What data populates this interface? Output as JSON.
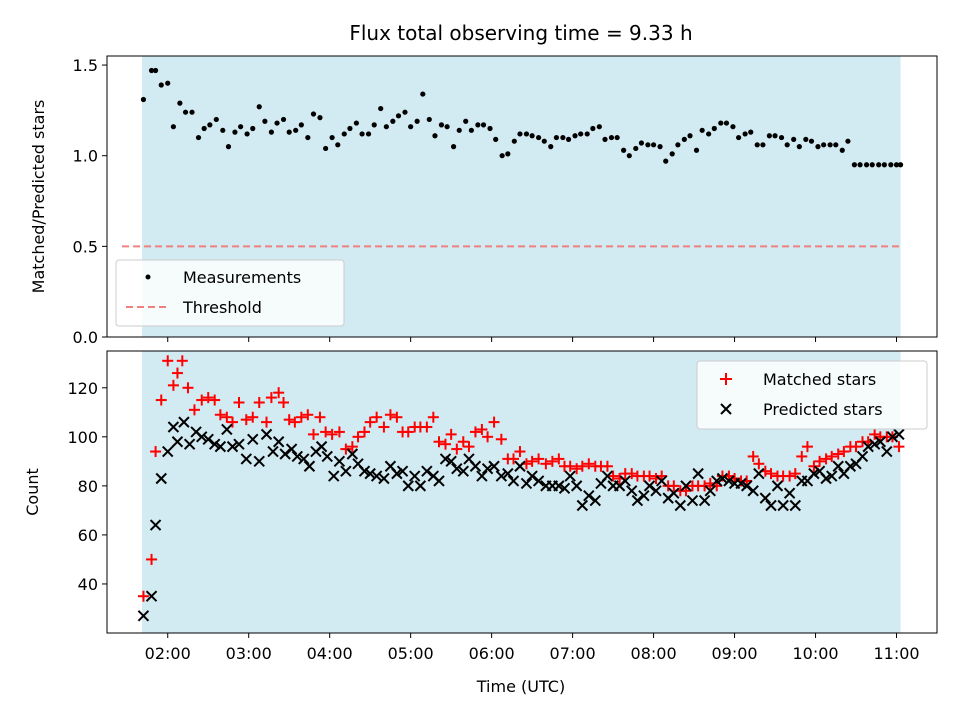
{
  "chart_data": [
    {
      "type": "scatter",
      "title": "Flux total observing time = 9.33 h",
      "xlabel": "",
      "ylabel": "Matched/Predicted stars",
      "ylim": [
        0,
        1.55
      ],
      "yticks": [
        0.0,
        0.5,
        1.0,
        1.5
      ],
      "ytick_labels": [
        "0.0",
        "0.5",
        "1.0",
        "1.5"
      ],
      "shaded_span_hours": [
        1.683,
        11.05
      ],
      "threshold": 0.5,
      "legend_position": "lower-left",
      "colors": {
        "measurements": "#000000",
        "threshold": "#f08080",
        "shade": "#add8e6"
      },
      "series": [
        {
          "name": "Measurements",
          "x_hours": [
            1.7,
            1.8,
            1.85,
            1.92,
            2.0,
            2.07,
            2.15,
            2.22,
            2.3,
            2.38,
            2.45,
            2.52,
            2.6,
            2.68,
            2.75,
            2.83,
            2.9,
            2.98,
            3.05,
            3.13,
            3.2,
            3.28,
            3.35,
            3.43,
            3.5,
            3.58,
            3.65,
            3.73,
            3.8,
            3.88,
            3.95,
            4.03,
            4.1,
            4.18,
            4.25,
            4.33,
            4.4,
            4.48,
            4.55,
            4.63,
            4.7,
            4.78,
            4.85,
            4.93,
            5.0,
            5.08,
            5.15,
            5.23,
            5.3,
            5.38,
            5.45,
            5.53,
            5.6,
            5.68,
            5.75,
            5.83,
            5.9,
            5.98,
            6.05,
            6.13,
            6.2,
            6.28,
            6.35,
            6.43,
            6.5,
            6.58,
            6.65,
            6.73,
            6.8,
            6.88,
            6.95,
            7.03,
            7.1,
            7.18,
            7.25,
            7.33,
            7.4,
            7.48,
            7.55,
            7.63,
            7.7,
            7.78,
            7.85,
            7.93,
            8.0,
            8.08,
            8.15,
            8.23,
            8.3,
            8.38,
            8.45,
            8.53,
            8.6,
            8.68,
            8.75,
            8.83,
            8.9,
            8.98,
            9.05,
            9.13,
            9.2,
            9.28,
            9.35,
            9.43,
            9.5,
            9.58,
            9.65,
            9.73,
            9.8,
            9.88,
            9.95,
            10.03,
            10.1,
            10.18,
            10.25,
            10.33,
            10.4,
            10.48,
            10.55,
            10.63,
            10.7,
            10.78,
            10.85,
            10.93,
            11.0,
            11.05
          ],
          "y": [
            1.31,
            1.47,
            1.47,
            1.39,
            1.4,
            1.16,
            1.29,
            1.24,
            1.24,
            1.1,
            1.15,
            1.17,
            1.2,
            1.14,
            1.05,
            1.13,
            1.16,
            1.12,
            1.15,
            1.27,
            1.19,
            1.13,
            1.18,
            1.2,
            1.13,
            1.14,
            1.17,
            1.1,
            1.23,
            1.21,
            1.04,
            1.1,
            1.06,
            1.12,
            1.15,
            1.18,
            1.12,
            1.12,
            1.17,
            1.26,
            1.16,
            1.19,
            1.22,
            1.24,
            1.16,
            1.19,
            1.34,
            1.2,
            1.11,
            1.17,
            1.16,
            1.05,
            1.14,
            1.19,
            1.14,
            1.17,
            1.17,
            1.15,
            1.09,
            1.0,
            1.01,
            1.08,
            1.12,
            1.12,
            1.11,
            1.1,
            1.08,
            1.05,
            1.1,
            1.1,
            1.09,
            1.11,
            1.12,
            1.12,
            1.15,
            1.16,
            1.09,
            1.1,
            1.1,
            1.03,
            1.0,
            1.04,
            1.07,
            1.06,
            1.06,
            1.05,
            0.97,
            1.01,
            1.06,
            1.09,
            1.11,
            1.03,
            1.14,
            1.12,
            1.15,
            1.18,
            1.18,
            1.16,
            1.1,
            1.12,
            1.13,
            1.06,
            1.06,
            1.11,
            1.11,
            1.1,
            1.06,
            1.09,
            1.05,
            1.09,
            1.08,
            1.05,
            1.06,
            1.06,
            1.06,
            1.03,
            1.08,
            0.95,
            0.95,
            0.95,
            0.95,
            0.95,
            0.95,
            0.95,
            0.95,
            0.95
          ]
        }
      ],
      "legend": [
        "Measurements",
        "Threshold"
      ]
    },
    {
      "type": "scatter",
      "title": "",
      "xlabel": "Time (UTC)",
      "ylabel": "Count",
      "ylim": [
        20,
        135
      ],
      "yticks": [
        40,
        60,
        80,
        100,
        120
      ],
      "ytick_labels": [
        "40",
        "60",
        "80",
        "100",
        "120"
      ],
      "xticks_hours": [
        2,
        3,
        4,
        5,
        6,
        7,
        8,
        9,
        10,
        11
      ],
      "xtick_labels": [
        "02:00",
        "03:00",
        "04:00",
        "05:00",
        "06:00",
        "07:00",
        "08:00",
        "09:00",
        "10:00",
        "11:00"
      ],
      "xlim_hours": [
        1.25,
        11.5
      ],
      "legend_position": "top-right",
      "colors": {
        "matched": "#ff0000",
        "predicted": "#000000",
        "shade": "#add8e6"
      },
      "series": [
        {
          "name": "Matched stars",
          "x_hours": [
            1.7,
            1.8,
            1.85,
            1.92,
            2.0,
            2.07,
            2.12,
            2.18,
            2.25,
            2.33,
            2.42,
            2.5,
            2.58,
            2.65,
            2.73,
            2.8,
            2.88,
            2.97,
            3.05,
            3.13,
            3.22,
            3.28,
            3.37,
            3.43,
            3.5,
            3.57,
            3.65,
            3.73,
            3.8,
            3.88,
            3.95,
            4.03,
            4.12,
            4.2,
            4.28,
            4.35,
            4.43,
            4.5,
            4.58,
            4.67,
            4.75,
            4.83,
            4.9,
            4.97,
            5.05,
            5.12,
            5.2,
            5.28,
            5.35,
            5.43,
            5.5,
            5.57,
            5.65,
            5.72,
            5.8,
            5.88,
            5.95,
            6.03,
            6.12,
            6.2,
            6.27,
            6.35,
            6.43,
            6.5,
            6.58,
            6.67,
            6.75,
            6.83,
            6.9,
            6.97,
            7.05,
            7.12,
            7.2,
            7.28,
            7.35,
            7.43,
            7.5,
            7.58,
            7.65,
            7.73,
            7.8,
            7.88,
            7.95,
            8.03,
            8.1,
            8.18,
            8.25,
            8.33,
            8.4,
            8.48,
            8.55,
            8.63,
            8.7,
            8.78,
            8.85,
            8.93,
            9.0,
            9.08,
            9.15,
            9.23,
            9.3,
            9.38,
            9.45,
            9.53,
            9.6,
            9.68,
            9.75,
            9.83,
            9.9,
            9.98,
            10.05,
            10.13,
            10.2,
            10.28,
            10.35,
            10.43,
            10.5,
            10.58,
            10.65,
            10.73,
            10.8,
            10.88,
            10.95,
            11.03
          ],
          "y": [
            35,
            50,
            94,
            115,
            131,
            121,
            126,
            131,
            120,
            111,
            115,
            116,
            115,
            109,
            108,
            106,
            114,
            107,
            108,
            114,
            106,
            116,
            118,
            114,
            107,
            106,
            108,
            109,
            101,
            108,
            102,
            101,
            102,
            95,
            96,
            100,
            102,
            106,
            108,
            104,
            109,
            108,
            102,
            102,
            104,
            104,
            104,
            108,
            98,
            97,
            101,
            95,
            98,
            96,
            102,
            103,
            100,
            106,
            99,
            91,
            91,
            94,
            89,
            90,
            91,
            89,
            90,
            91,
            88,
            88,
            87,
            88,
            89,
            88,
            88,
            88,
            84,
            83,
            85,
            85,
            84,
            84,
            84,
            83,
            84,
            80,
            80,
            78,
            78,
            80,
            80,
            80,
            81,
            80,
            84,
            84,
            83,
            82,
            82,
            92,
            89,
            86,
            85,
            84,
            84,
            84,
            85,
            92,
            96,
            88,
            90,
            91,
            92,
            93,
            94,
            96,
            96,
            98,
            98,
            101,
            100,
            100,
            100,
            96
          ]
        },
        {
          "name": "Predicted stars",
          "x_hours": [
            1.7,
            1.8,
            1.85,
            1.92,
            2.0,
            2.07,
            2.12,
            2.2,
            2.27,
            2.35,
            2.42,
            2.5,
            2.58,
            2.65,
            2.73,
            2.8,
            2.88,
            2.97,
            3.05,
            3.13,
            3.22,
            3.3,
            3.37,
            3.45,
            3.53,
            3.6,
            3.68,
            3.75,
            3.83,
            3.9,
            3.97,
            4.05,
            4.12,
            4.2,
            4.28,
            4.35,
            4.43,
            4.5,
            4.58,
            4.67,
            4.75,
            4.83,
            4.9,
            4.97,
            5.05,
            5.12,
            5.2,
            5.28,
            5.35,
            5.43,
            5.5,
            5.57,
            5.65,
            5.72,
            5.8,
            5.88,
            5.95,
            6.03,
            6.12,
            6.2,
            6.27,
            6.35,
            6.43,
            6.5,
            6.58,
            6.67,
            6.75,
            6.83,
            6.9,
            6.97,
            7.05,
            7.12,
            7.2,
            7.28,
            7.35,
            7.43,
            7.5,
            7.58,
            7.65,
            7.73,
            7.8,
            7.88,
            7.95,
            8.03,
            8.1,
            8.18,
            8.25,
            8.33,
            8.4,
            8.48,
            8.55,
            8.63,
            8.7,
            8.78,
            8.85,
            8.93,
            9.0,
            9.08,
            9.15,
            9.23,
            9.3,
            9.38,
            9.45,
            9.53,
            9.6,
            9.68,
            9.75,
            9.83,
            9.9,
            9.98,
            10.05,
            10.13,
            10.2,
            10.28,
            10.35,
            10.43,
            10.5,
            10.58,
            10.65,
            10.73,
            10.8,
            10.88,
            10.95,
            11.03
          ],
          "y": [
            27,
            35,
            64,
            83,
            94,
            104,
            98,
            106,
            97,
            102,
            100,
            99,
            97,
            96,
            103,
            96,
            97,
            91,
            99,
            90,
            101,
            94,
            98,
            93,
            95,
            92,
            91,
            88,
            94,
            96,
            92,
            84,
            90,
            86,
            93,
            89,
            86,
            85,
            84,
            83,
            88,
            85,
            86,
            80,
            84,
            80,
            86,
            84,
            82,
            91,
            90,
            87,
            86,
            91,
            88,
            84,
            87,
            88,
            84,
            85,
            82,
            88,
            81,
            84,
            82,
            80,
            80,
            80,
            79,
            84,
            80,
            72,
            76,
            74,
            81,
            84,
            80,
            80,
            82,
            78,
            74,
            76,
            80,
            78,
            82,
            75,
            77,
            72,
            80,
            74,
            85,
            74,
            78,
            82,
            83,
            82,
            81,
            81,
            80,
            78,
            85,
            75,
            72,
            80,
            72,
            77,
            72,
            82,
            82,
            85,
            86,
            83,
            84,
            88,
            85,
            88,
            89,
            92,
            96,
            97,
            98,
            94,
            100,
            101
          ]
        }
      ],
      "legend": [
        "Matched stars",
        "Predicted stars"
      ]
    }
  ]
}
